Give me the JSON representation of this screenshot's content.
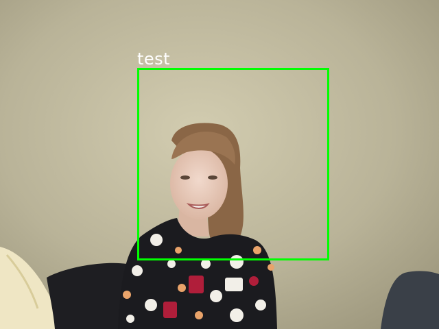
{
  "detection": {
    "label": "test",
    "box_color": "#00ff00",
    "label_color": "#ffffff"
  }
}
